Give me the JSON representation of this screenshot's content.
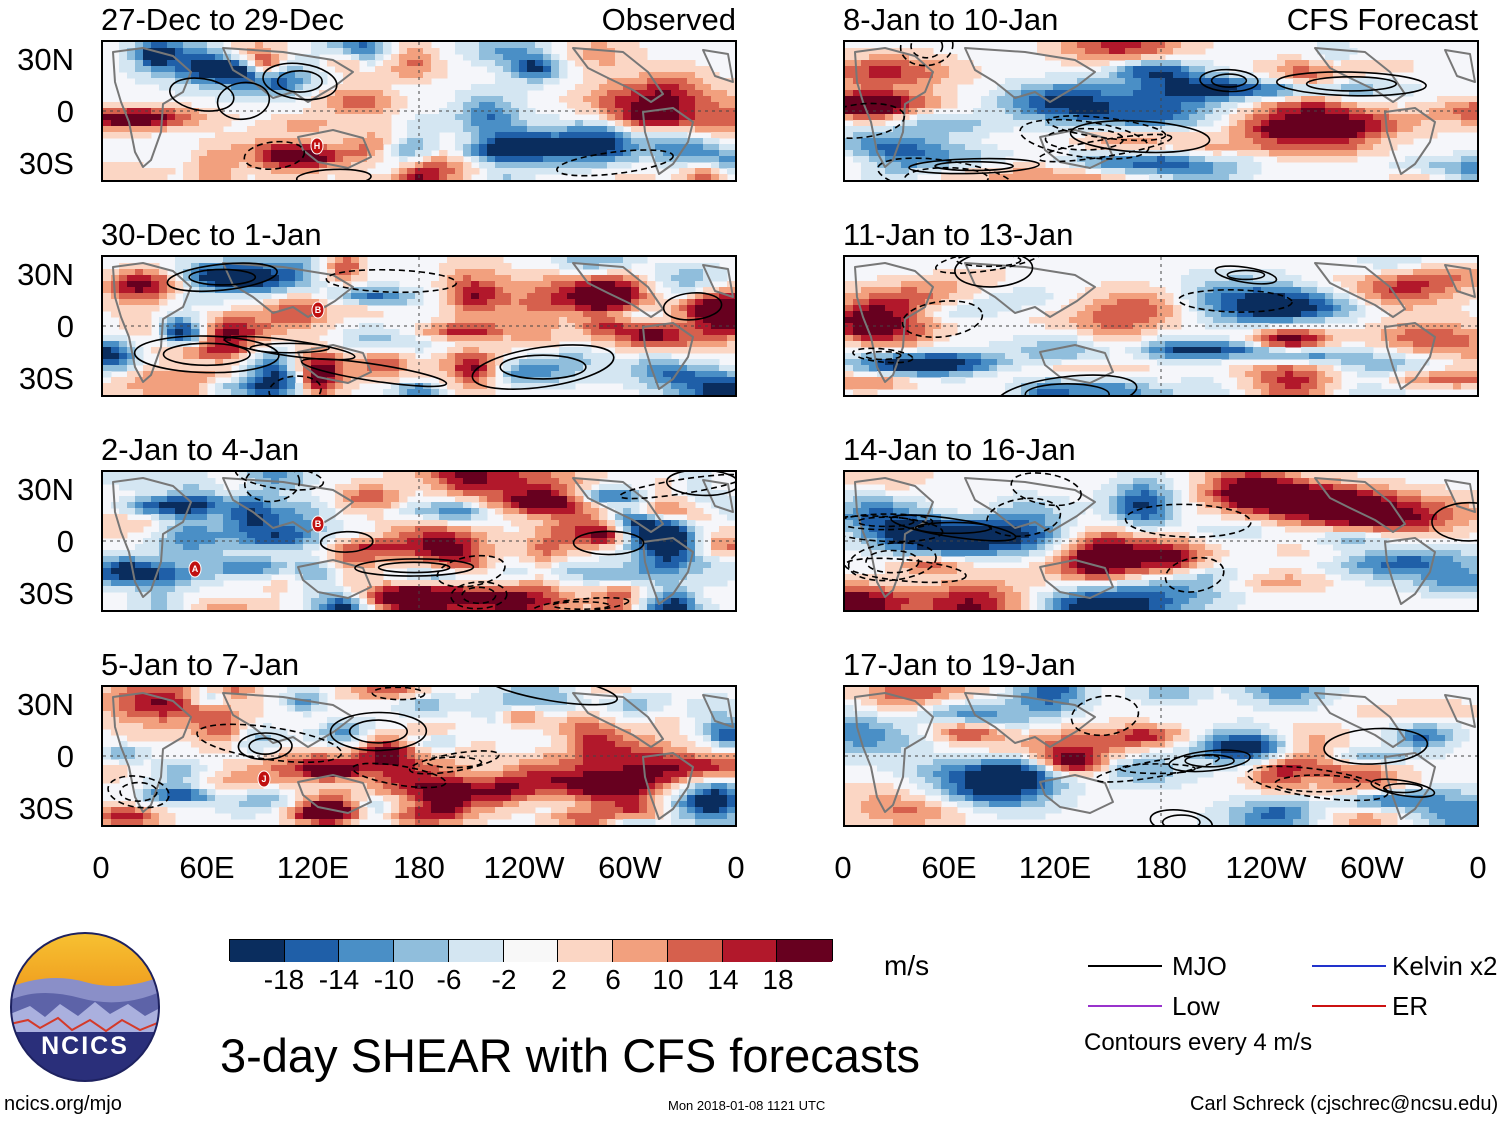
{
  "left_column": {
    "panels": [
      {
        "title": "27-Dec to 29-Dec",
        "tag": "Observed"
      },
      {
        "title": "30-Dec to 1-Jan",
        "tag": ""
      },
      {
        "title": "2-Jan to 4-Jan",
        "tag": ""
      },
      {
        "title": "5-Jan to 7-Jan",
        "tag": ""
      }
    ]
  },
  "right_column": {
    "panels": [
      {
        "title": "8-Jan to 10-Jan",
        "tag": "CFS Forecast"
      },
      {
        "title": "11-Jan to 13-Jan",
        "tag": ""
      },
      {
        "title": "14-Jan to 16-Jan",
        "tag": ""
      },
      {
        "title": "17-Jan to 19-Jan",
        "tag": ""
      }
    ]
  },
  "lat_labels": [
    "30N",
    "0",
    "30S"
  ],
  "lon_labels": [
    "0",
    "60E",
    "120E",
    "180",
    "120W",
    "60W",
    "0"
  ],
  "storm_markers": [
    {
      "panel": 0,
      "letter": "H"
    },
    {
      "panel": 1,
      "letter": "B"
    },
    {
      "panel": 2,
      "letter": "B"
    },
    {
      "panel": 2,
      "letter": "A"
    },
    {
      "panel": 3,
      "letter": "J"
    }
  ],
  "colorbar": {
    "colors": [
      "#0a2d5e",
      "#1f5fa8",
      "#4a8fc6",
      "#90bedc",
      "#d4e6f2",
      "#f8f8f8",
      "#fbd6c4",
      "#f2a07e",
      "#d6604d",
      "#b2182b",
      "#67001f"
    ],
    "tick_labels": [
      "-18",
      "-14",
      "-10",
      "-6",
      "-2",
      "2",
      "6",
      "10",
      "14",
      "18"
    ],
    "units": "m/s"
  },
  "legend": {
    "items": [
      {
        "label": "MJO",
        "color": "#000000"
      },
      {
        "label": "Kelvin x2",
        "color": "#2233cc"
      },
      {
        "label": "Low",
        "color": "#9933cc"
      },
      {
        "label": "ER",
        "color": "#cc1111"
      }
    ],
    "note": "Contours every 4 m/s"
  },
  "logo": {
    "text": "NCICS"
  },
  "main_title": "3-day SHEAR with CFS forecasts",
  "footer": {
    "site": "ncics.org/mjo",
    "timestamp": "Mon 2018-01-08 1121 UTC",
    "credit": "Carl Schreck (cjschrec@ncsu.edu)"
  }
}
